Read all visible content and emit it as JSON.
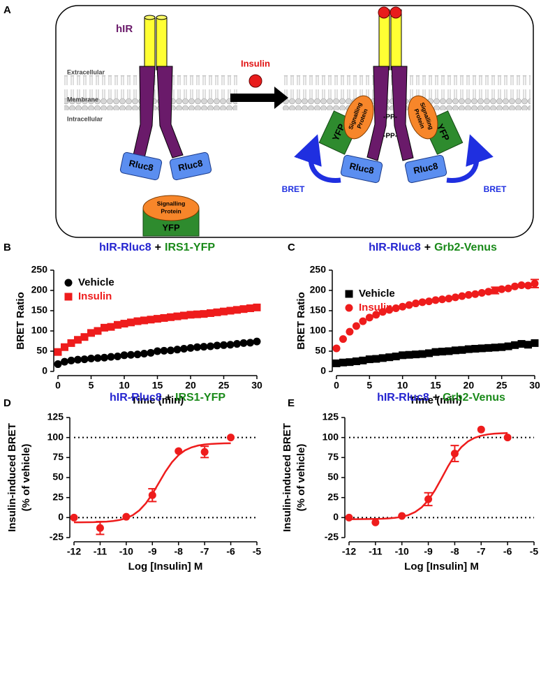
{
  "diagram": {
    "panel": "A",
    "receptor": "hIR",
    "extracellular": "Extracellular",
    "membrane": "Membrane",
    "intracellular": "Intracellular",
    "ligand": "Insulin",
    "rluc8_labels": [
      "Rluc8",
      "Rluc8",
      "Rluc8",
      "Rluc8"
    ],
    "yfp_labels": [
      "YFP",
      "YFP",
      "YFP"
    ],
    "signalling_protein_labels": [
      [
        "Signalling",
        "Protein"
      ],
      [
        "Signalling",
        "Protein"
      ],
      [
        "Signalling",
        "Protein"
      ]
    ],
    "pp_labels": [
      "-PP-",
      "-PP-"
    ],
    "bret_labels": [
      "BRET",
      "BRET"
    ]
  },
  "chart_data": [
    {
      "type": "scatter",
      "panel": "B",
      "title": [
        {
          "text": "hIR-Rluc8",
          "color": "#2424d0"
        },
        {
          "text": "+",
          "color": "#000000"
        },
        {
          "text": "IRS1-YFP",
          "color": "#1a8a1a"
        }
      ],
      "x_label": "Time (min)",
      "y_label": "BRET Ratio",
      "xlim": [
        0,
        30
      ],
      "xticks": [
        0,
        5,
        10,
        15,
        20,
        25,
        30
      ],
      "ylim": [
        0,
        250
      ],
      "yticks": [
        0,
        50,
        100,
        150,
        200,
        250
      ],
      "legend": "upper left",
      "x": [
        0,
        1,
        2,
        3,
        4,
        5,
        6,
        7,
        8,
        9,
        10,
        11,
        12,
        13,
        14,
        15,
        16,
        17,
        18,
        19,
        20,
        21,
        22,
        23,
        24,
        25,
        26,
        27,
        28,
        29,
        30
      ],
      "series": [
        {
          "name": "Vehicle",
          "color": "#000000",
          "marker": "circle",
          "values": [
            18,
            24,
            27,
            29,
            30,
            32,
            33,
            34,
            36,
            37,
            40,
            41,
            42,
            44,
            46,
            50,
            51,
            52,
            54,
            56,
            58,
            60,
            61,
            62,
            64,
            65,
            66,
            68,
            70,
            71,
            74
          ]
        },
        {
          "name": "Insulin",
          "color": "#ee1c1c",
          "marker": "square",
          "values": [
            48,
            60,
            70,
            78,
            85,
            95,
            100,
            108,
            110,
            115,
            118,
            121,
            124,
            126,
            128,
            130,
            132,
            134,
            136,
            138,
            140,
            141,
            142,
            144,
            146,
            148,
            150,
            152,
            154,
            156,
            158
          ]
        }
      ]
    },
    {
      "type": "scatter",
      "panel": "C",
      "title": [
        {
          "text": "hIR-Rluc8",
          "color": "#2424d0"
        },
        {
          "text": "+",
          "color": "#000000"
        },
        {
          "text": "Grb2-Venus",
          "color": "#1a8a1a"
        }
      ],
      "x_label": "Time (min)",
      "y_label": "BRET Ratio",
      "xlim": [
        0,
        30
      ],
      "xticks": [
        0,
        5,
        10,
        15,
        20,
        25,
        30
      ],
      "ylim": [
        0,
        250
      ],
      "yticks": [
        0,
        50,
        100,
        150,
        200,
        250
      ],
      "legend": "upper left",
      "x": [
        0,
        1,
        2,
        3,
        4,
        5,
        6,
        7,
        8,
        9,
        10,
        11,
        12,
        13,
        14,
        15,
        16,
        17,
        18,
        19,
        20,
        21,
        22,
        23,
        24,
        25,
        26,
        27,
        28,
        29,
        30
      ],
      "series": [
        {
          "name": "Vehicle",
          "color": "#000000",
          "marker": "square",
          "values": [
            20,
            22,
            23,
            25,
            27,
            30,
            31,
            33,
            35,
            37,
            40,
            41,
            42,
            43,
            45,
            48,
            49,
            50,
            52,
            53,
            55,
            56,
            57,
            58,
            59,
            60,
            62,
            65,
            68,
            66,
            70
          ]
        },
        {
          "name": "Insulin",
          "color": "#ee1c1c",
          "marker": "circle",
          "values": [
            57,
            80,
            98,
            112,
            124,
            133,
            140,
            147,
            152,
            156,
            160,
            164,
            168,
            171,
            173,
            176,
            178,
            180,
            183,
            186,
            189,
            191,
            194,
            197,
            200,
            203,
            205,
            210,
            213,
            212,
            217
          ],
          "errors": [
            null,
            null,
            null,
            null,
            null,
            null,
            null,
            null,
            null,
            null,
            null,
            null,
            null,
            null,
            null,
            null,
            null,
            null,
            null,
            null,
            null,
            null,
            null,
            null,
            8,
            null,
            null,
            null,
            null,
            null,
            10
          ]
        }
      ]
    },
    {
      "type": "scatter",
      "panel": "D",
      "title": [
        {
          "text": "hIR-Rluc8",
          "color": "#2424d0"
        },
        {
          "text": "+",
          "color": "#000000"
        },
        {
          "text": "IRS1-YFP",
          "color": "#1a8a1a"
        }
      ],
      "x_label": "Log [Insulin] M",
      "y_label": [
        "Insulin-induced BRET",
        "(% of vehicle)"
      ],
      "xlim": [
        -12,
        -5
      ],
      "xticks": [
        -12,
        -11,
        -10,
        -9,
        -8,
        -7,
        -6,
        -5
      ],
      "ylim": [
        -25,
        125
      ],
      "yticks": [
        -25,
        0,
        25,
        50,
        75,
        100,
        125
      ],
      "reference_lines": [
        0,
        100
      ],
      "x": [
        -12,
        -11,
        -10,
        -9,
        -8,
        -7,
        -6
      ],
      "series": [
        {
          "color": "#ee1c1c",
          "marker": "circle",
          "values": [
            0,
            -13,
            1,
            28,
            83,
            82,
            100
          ],
          "errors": [
            null,
            8,
            null,
            8,
            null,
            7,
            null
          ]
        }
      ],
      "fit": {
        "color": "#ee1c1c",
        "x": [
          -12,
          -11.75,
          -11.5,
          -11.25,
          -11,
          -10.75,
          -10.5,
          -10.25,
          -10,
          -9.75,
          -9.5,
          -9.25,
          -9,
          -8.75,
          -8.5,
          -8.25,
          -8,
          -7.75,
          -7.5,
          -7.25,
          -7,
          -6.75,
          -6.5,
          -6.25,
          -6
        ],
        "values": [
          -5.9,
          -5.9,
          -5.8,
          -5.7,
          -5.4,
          -5.0,
          -4.3,
          -3.0,
          -0.7,
          3.0,
          9.0,
          17.8,
          29.6,
          43.5,
          57.4,
          69.2,
          78.0,
          84.0,
          87.7,
          90.0,
          91.3,
          92.0,
          92.4,
          92.7,
          92.8
        ]
      }
    },
    {
      "type": "scatter",
      "panel": "E",
      "title": [
        {
          "text": "hIR-Rluc8",
          "color": "#2424d0"
        },
        {
          "text": "+",
          "color": "#000000"
        },
        {
          "text": "Grb2-Venus",
          "color": "#1a8a1a"
        }
      ],
      "x_label": "Log [Insulin] M",
      "y_label": [
        "Insulin-induced BRET",
        "(% of vehicle)"
      ],
      "xlim": [
        -12,
        -5
      ],
      "xticks": [
        -12,
        -11,
        -10,
        -9,
        -8,
        -7,
        -6,
        -5
      ],
      "ylim": [
        -25,
        125
      ],
      "yticks": [
        -25,
        0,
        25,
        50,
        75,
        100,
        125
      ],
      "reference_lines": [
        0,
        100
      ],
      "x": [
        -12,
        -11,
        -10,
        -9,
        -8,
        -7,
        -6
      ],
      "series": [
        {
          "color": "#ee1c1c",
          "marker": "circle",
          "values": [
            0,
            -6,
            2,
            23,
            80,
            110,
            100
          ],
          "errors": [
            null,
            null,
            null,
            8,
            10,
            null,
            null
          ]
        }
      ],
      "fit": {
        "color": "#ee1c1c",
        "x": [
          -12,
          -11.75,
          -11.5,
          -11.25,
          -11,
          -10.75,
          -10.5,
          -10.25,
          -10,
          -9.75,
          -9.5,
          -9.25,
          -9,
          -8.75,
          -8.5,
          -8.25,
          -8,
          -7.75,
          -7.5,
          -7.25,
          -7,
          -6.75,
          -6.5,
          -6.25,
          -6
        ],
        "values": [
          -2.0,
          -2.0,
          -1.9,
          -1.8,
          -1.7,
          -1.5,
          -1.0,
          -0.3,
          1.0,
          3.2,
          6.9,
          12.8,
          21.7,
          34.1,
          48.9,
          64.2,
          77.7,
          88.0,
          95.1,
          99.6,
          102.3,
          103.9,
          104.8,
          105.3,
          105.6
        ]
      }
    }
  ]
}
